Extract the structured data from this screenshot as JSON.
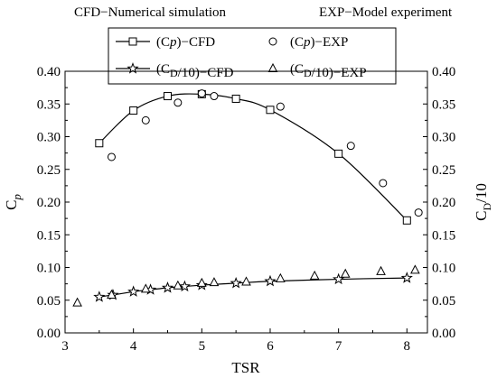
{
  "chart_data": {
    "type": "line",
    "annotations": {
      "left": "CFD−Numerical simulation",
      "right": "EXP−Model experiment"
    },
    "xlabel": "TSR",
    "ylabel": "Cp",
    "y2label": "CD/10",
    "xlim": [
      3,
      8.3
    ],
    "ylim": [
      0,
      0.4
    ],
    "y2lim": [
      0,
      0.4
    ],
    "xticks": [
      "3",
      "4",
      "5",
      "6",
      "7",
      "8"
    ],
    "yticks": [
      "0.00",
      "0.05",
      "0.10",
      "0.15",
      "0.20",
      "0.25",
      "0.30",
      "0.35",
      "0.40"
    ],
    "legend_position": "top",
    "series": [
      {
        "name": "(Cp)−CFD",
        "marker": "square",
        "line": true,
        "points": [
          [
            3.5,
            0.29
          ],
          [
            4.0,
            0.34
          ],
          [
            4.5,
            0.362
          ],
          [
            5.0,
            0.365
          ],
          [
            5.5,
            0.358
          ],
          [
            6.0,
            0.341
          ],
          [
            7.0,
            0.274
          ],
          [
            8.0,
            0.172
          ]
        ]
      },
      {
        "name": "(Cp)−EXP",
        "marker": "circle",
        "line": false,
        "points": [
          [
            3.68,
            0.269
          ],
          [
            4.18,
            0.325
          ],
          [
            4.65,
            0.352
          ],
          [
            5.0,
            0.366
          ],
          [
            5.18,
            0.362
          ],
          [
            6.15,
            0.346
          ],
          [
            7.18,
            0.286
          ],
          [
            7.65,
            0.229
          ],
          [
            8.17,
            0.184
          ]
        ]
      },
      {
        "name": "(CD/10)−CFD",
        "marker": "star",
        "line": true,
        "points": [
          [
            3.5,
            0.055
          ],
          [
            3.7,
            0.058
          ],
          [
            4.0,
            0.063
          ],
          [
            4.25,
            0.066
          ],
          [
            4.5,
            0.069
          ],
          [
            4.75,
            0.071
          ],
          [
            5.0,
            0.073
          ],
          [
            5.5,
            0.076
          ],
          [
            6.0,
            0.079
          ],
          [
            7.0,
            0.082
          ],
          [
            8.0,
            0.084
          ]
        ]
      },
      {
        "name": "(CD/10)−EXP",
        "marker": "triangle",
        "line": false,
        "points": [
          [
            3.18,
            0.046
          ],
          [
            3.68,
            0.058
          ],
          [
            4.18,
            0.067
          ],
          [
            4.65,
            0.072
          ],
          [
            5.0,
            0.076
          ],
          [
            5.18,
            0.077
          ],
          [
            5.65,
            0.078
          ],
          [
            6.15,
            0.083
          ],
          [
            6.65,
            0.087
          ],
          [
            7.1,
            0.09
          ],
          [
            7.62,
            0.094
          ],
          [
            8.12,
            0.096
          ]
        ]
      }
    ]
  }
}
